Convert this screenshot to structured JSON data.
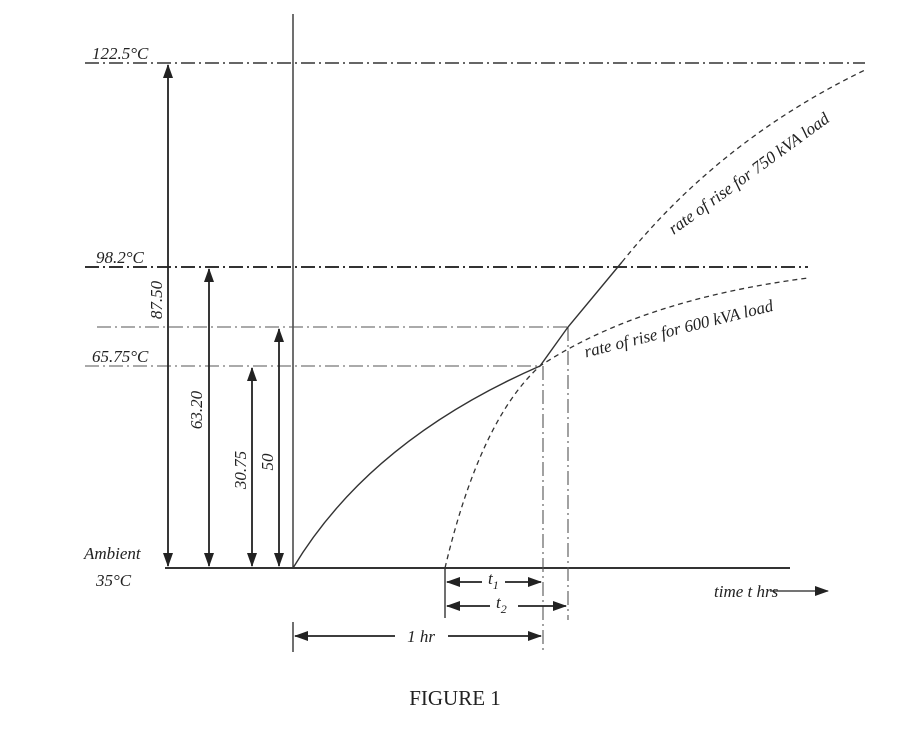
{
  "levels": {
    "top": "122.5°C",
    "upper": "98.2°C",
    "middle": "65.75°C",
    "ambient": "Ambient",
    "base": "35°C"
  },
  "rises": {
    "r1": "87.50",
    "r2": "63.20",
    "r3": "30.75",
    "r4": "50"
  },
  "curves": {
    "c750": "rate of rise for 750 kVA load",
    "c600": "rate of rise for 600 kVA load"
  },
  "intervals": {
    "t1": {
      "label": "t",
      "subscript": "1"
    },
    "t2": {
      "label": "t",
      "subscript": "2"
    },
    "hour": "1 hr"
  },
  "axis": {
    "x": "time t hrs"
  },
  "caption": "FIGURE 1"
}
